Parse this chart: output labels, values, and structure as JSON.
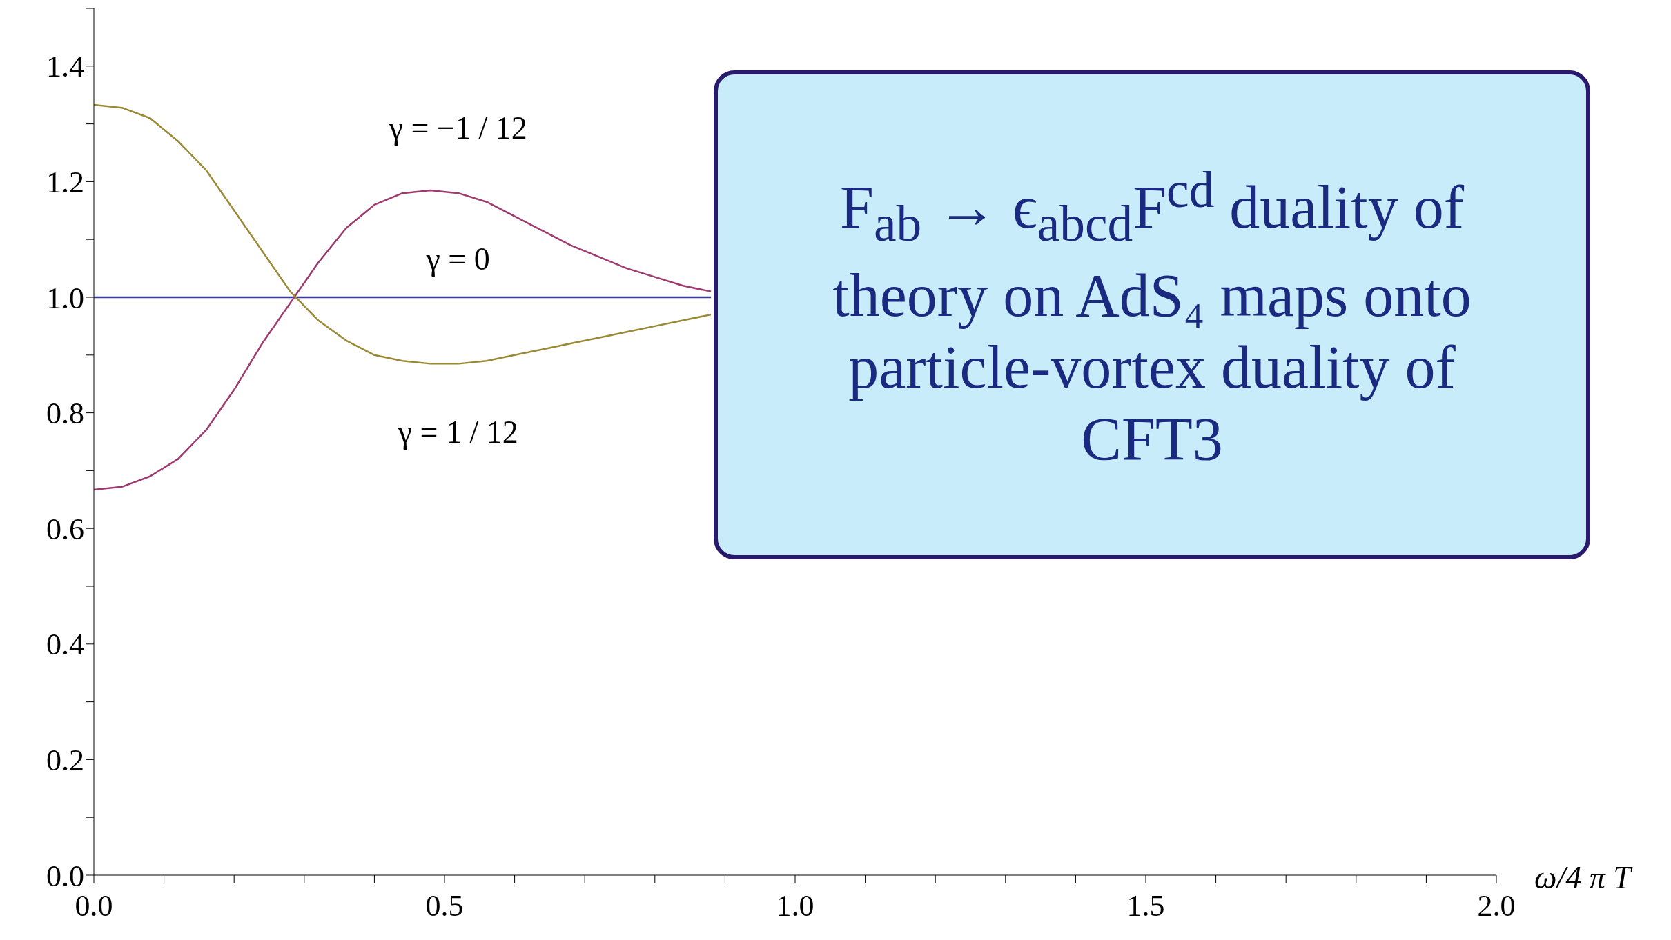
{
  "chart_data": {
    "type": "line",
    "xlabel": "ω/4 π T",
    "x": [
      0,
      0.04,
      0.08,
      0.12,
      0.16,
      0.2,
      0.24,
      0.28,
      0.32,
      0.36,
      0.4,
      0.44,
      0.48,
      0.52,
      0.56,
      0.6,
      0.64,
      0.68,
      0.72,
      0.76,
      0.8,
      0.84,
      0.88
    ],
    "series": [
      {
        "name": "γ = 0",
        "color": "#3b3b9b",
        "values": [
          1,
          1,
          1,
          1,
          1,
          1,
          1,
          1,
          1,
          1,
          1,
          1,
          1,
          1,
          1,
          1,
          1,
          1,
          1,
          1,
          1,
          1,
          1
        ]
      },
      {
        "name": "γ = −1 / 12",
        "color": "#9e3a6e",
        "values": [
          0.667,
          0.672,
          0.69,
          0.72,
          0.77,
          0.84,
          0.92,
          0.99,
          1.06,
          1.12,
          1.16,
          1.18,
          1.185,
          1.18,
          1.165,
          1.14,
          1.115,
          1.09,
          1.07,
          1.05,
          1.035,
          1.02,
          1.01
        ]
      },
      {
        "name": "γ = 1 / 12",
        "color": "#9a8a35",
        "values": [
          1.333,
          1.328,
          1.31,
          1.27,
          1.22,
          1.15,
          1.08,
          1.01,
          0.96,
          0.925,
          0.9,
          0.89,
          0.885,
          0.885,
          0.89,
          0.9,
          0.91,
          0.92,
          0.93,
          0.94,
          0.95,
          0.96,
          0.97
        ]
      }
    ],
    "annotations": [
      "F$_{ab}$ → ϵ$_{abcd}$F$^{cd}$ duality of theory on AdS₄ maps onto particle-vortex duality of CFT3"
    ],
    "xlim": [
      0,
      2
    ],
    "ylim": [
      0,
      1.5
    ],
    "xticks": [
      {
        "value": 0,
        "label": "0.0"
      },
      {
        "value": 0.1,
        "label": null
      },
      {
        "value": 0.2,
        "label": null
      },
      {
        "value": 0.3,
        "label": null
      },
      {
        "value": 0.4,
        "label": null
      },
      {
        "value": 0.5,
        "label": "0.5"
      },
      {
        "value": 0.6,
        "label": null
      },
      {
        "value": 0.7,
        "label": null
      },
      {
        "value": 0.8,
        "label": null
      },
      {
        "value": 0.9,
        "label": null
      },
      {
        "value": 1,
        "label": "1.0"
      },
      {
        "value": 1.1,
        "label": null
      },
      {
        "value": 1.2,
        "label": null
      },
      {
        "value": 1.3,
        "label": null
      },
      {
        "value": 1.4,
        "label": null
      },
      {
        "value": 1.5,
        "label": "1.5"
      },
      {
        "value": 1.6,
        "label": null
      },
      {
        "value": 1.7,
        "label": null
      },
      {
        "value": 1.8,
        "label": null
      },
      {
        "value": 1.9,
        "label": null
      },
      {
        "value": 2,
        "label": "2.0"
      }
    ],
    "yticks": [
      {
        "value": 0,
        "label": "0.0"
      },
      {
        "value": 0.1,
        "label": null
      },
      {
        "value": 0.2,
        "label": "0.2"
      },
      {
        "value": 0.3,
        "label": null
      },
      {
        "value": 0.4,
        "label": "0.4"
      },
      {
        "value": 0.5,
        "label": null
      },
      {
        "value": 0.6,
        "label": "0.6"
      },
      {
        "value": 0.7,
        "label": null
      },
      {
        "value": 0.8,
        "label": "0.8"
      },
      {
        "value": 0.9,
        "label": null
      },
      {
        "value": 1,
        "label": "1.0"
      },
      {
        "value": 1.1,
        "label": null
      },
      {
        "value": 1.2,
        "label": "1.2"
      },
      {
        "value": 1.3,
        "label": null
      },
      {
        "value": 1.4,
        "label": "1.4"
      },
      {
        "value": 1.5,
        "label": null
      }
    ],
    "grid": false,
    "legend": false,
    "marker": "none"
  }
}
